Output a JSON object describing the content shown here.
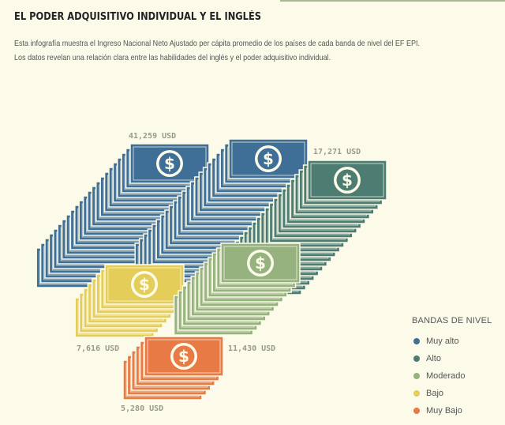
{
  "header": {
    "title": "EL PODER ADQUISITIVO INDIVIDUAL Y EL INGLÉS",
    "description_line1": "Esta infografía muestra el Ingreso Nacional Neto Ajustado per cápita promedio de los países de cada banda de nivel del EF EPI.",
    "description_line2": "Los datos revelan una relación clara entre las habilidades del inglés y el poder adquisitivo individual."
  },
  "legend": {
    "title": "BANDAS DE NIVEL",
    "items": [
      {
        "label": "Muy alto",
        "color": "#3f6e96"
      },
      {
        "label": "Alto",
        "color": "#4d7d72"
      },
      {
        "label": "Moderado",
        "color": "#95b27f"
      },
      {
        "label": "Bajo",
        "color": "#e5cd5a"
      },
      {
        "label": "Muy Bajo",
        "color": "#e77a45"
      }
    ]
  },
  "chart_data": {
    "type": "pictograph",
    "unit": "USD",
    "icon": "dollar-bill-stack",
    "categories": [
      "Muy alto",
      "Alto",
      "Moderado",
      "Bajo",
      "Muy Bajo"
    ],
    "values": [
      41259,
      17271,
      11430,
      7616,
      5280
    ],
    "value_labels": [
      "41,259 USD",
      "17,271 USD",
      "11,430 USD",
      "7,616 USD",
      "5,280 USD"
    ],
    "legend_placement": "bottom-right"
  }
}
